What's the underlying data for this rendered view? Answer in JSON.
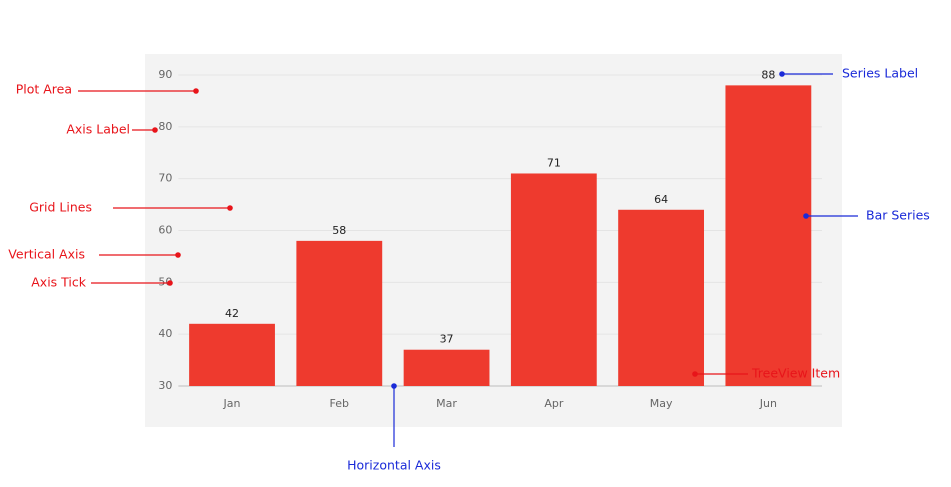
{
  "chart_data": {
    "type": "bar",
    "categories": [
      "Jan",
      "Feb",
      "Mar",
      "Apr",
      "May",
      "Jun"
    ],
    "values": [
      42,
      58,
      37,
      71,
      64,
      88
    ],
    "color": "#ee3a2e",
    "ylim": [
      30,
      90
    ],
    "yticks": [
      30,
      40,
      50,
      60,
      70,
      80,
      90
    ],
    "grid": true,
    "annotations": [
      {
        "text": "Plot Area",
        "color": "#e8141a"
      },
      {
        "text": "Axis Label",
        "color": "#e8141a"
      },
      {
        "text": "Grid Lines",
        "color": "#e8141a"
      },
      {
        "text": "Vertical Axis",
        "color": "#e8141a"
      },
      {
        "text": "Axis Tick",
        "color": "#e8141a"
      },
      {
        "text": "Horizontal Axis",
        "color": "#1a2ad8"
      },
      {
        "text": "TreeView Item",
        "color": "#e8141a"
      },
      {
        "text": "Series Label",
        "color": "#1a2ad8"
      },
      {
        "text": "Bar Series",
        "color": "#1a2ad8"
      }
    ]
  }
}
